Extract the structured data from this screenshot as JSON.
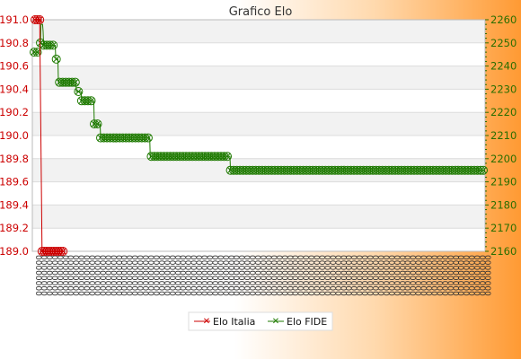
{
  "chart_data": {
    "type": "line",
    "title": "Grafico Elo",
    "y_left": {
      "ticks": [
        189.0,
        189.2,
        189.4,
        189.6,
        189.8,
        190.0,
        190.2,
        190.4,
        190.6,
        190.8,
        191.0
      ],
      "ylim": [
        189.0,
        191.0
      ],
      "color": "#cc0000"
    },
    "y_right": {
      "ticks": [
        2160,
        2170,
        2180,
        2190,
        2200,
        2210,
        2220,
        2230,
        2240,
        2250,
        2260
      ],
      "ylim": [
        2160,
        2260
      ],
      "color": "#2a6e00"
    },
    "grid": true,
    "legend_position": "bottom-center",
    "series": [
      {
        "name": "Elo Italia",
        "color": "#cc0000",
        "axis": "left",
        "values": [
          191.0,
          191.0,
          191.0,
          189.0,
          189.0,
          189.0,
          189.0,
          189.0,
          189.0,
          189.0,
          189.0,
          189.0,
          189.0
        ]
      },
      {
        "name": "Elo FIDE",
        "color": "#1e7a00",
        "axis": "right",
        "values": [
          2246,
          2246,
          2246,
          2246,
          2246,
          2246,
          2246,
          2246,
          2246,
          2246,
          2246,
          2246,
          2250,
          2258,
          2258,
          2258,
          2258,
          2255,
          2249,
          2249,
          2249,
          2249,
          2249,
          2249,
          2249,
          2249,
          2249,
          2249,
          2249,
          2249,
          2249,
          2249,
          2249,
          2249,
          2249,
          2249,
          2249,
          2249,
          2249,
          2249,
          2249,
          2243,
          2243,
          2243,
          2243,
          2243,
          2233,
          2233,
          2233,
          2233,
          2233,
          2233,
          2233,
          2233,
          2233,
          2233,
          2233,
          2233,
          2233,
          2233,
          2233,
          2233,
          2233,
          2233,
          2233,
          2233,
          2233,
          2233,
          2233,
          2233,
          2233,
          2233,
          2233,
          2233,
          2233,
          2233,
          2233,
          2233,
          2233,
          2233,
          2229,
          2229,
          2229,
          2229,
          2229,
          2229,
          2229,
          2229,
          2229,
          2229,
          2225,
          2225,
          2225,
          2225,
          2225,
          2225,
          2225,
          2225,
          2225,
          2225,
          2225,
          2225,
          2225,
          2225,
          2225,
          2225,
          2225,
          2225,
          2225,
          2225,
          2225,
          2225,
          2225,
          2225,
          2215,
          2215,
          2215,
          2215,
          2215,
          2215,
          2215,
          2215,
          2215,
          2215,
          2215,
          2215,
          2209,
          2209,
          2209,
          2209,
          2209,
          2209,
          2209,
          2209,
          2209,
          2209,
          2209,
          2209,
          2209,
          2209,
          2209,
          2209,
          2209,
          2209,
          2209,
          2209,
          2209,
          2209,
          2209,
          2209,
          2209,
          2209,
          2209,
          2209,
          2209,
          2209,
          2209,
          2209,
          2209,
          2209,
          2209,
          2209,
          2209,
          2209,
          2209,
          2209,
          2209,
          2209,
          2209,
          2209,
          2209,
          2209,
          2209,
          2209,
          2209,
          2209,
          2209,
          2209,
          2209,
          2209,
          2209,
          2209,
          2209,
          2209,
          2209,
          2209,
          2209,
          2209,
          2209,
          2209,
          2209,
          2209,
          2209,
          2209,
          2209,
          2209,
          2209,
          2209,
          2209,
          2209,
          2209,
          2209,
          2209,
          2209,
          2209,
          2209,
          2209,
          2209,
          2209,
          2209,
          2209,
          2209,
          2209,
          2209,
          2209,
          2209,
          2209,
          2209,
          2209,
          2209,
          2201,
          2201,
          2201,
          2201,
          2201,
          2201,
          2201,
          2201,
          2201,
          2201,
          2201,
          2201,
          2201,
          2201,
          2201,
          2201,
          2201,
          2201,
          2201,
          2201,
          2201,
          2201,
          2201,
          2201,
          2201,
          2201,
          2201,
          2201,
          2201,
          2201,
          2201,
          2201,
          2201,
          2201,
          2201,
          2201,
          2201,
          2201,
          2201,
          2201,
          2201,
          2201,
          2201,
          2201,
          2201,
          2201,
          2201,
          2201,
          2201,
          2201,
          2201,
          2201,
          2201,
          2201,
          2201,
          2201,
          2201,
          2201,
          2201,
          2201,
          2201,
          2201,
          2201,
          2201,
          2201,
          2201,
          2201,
          2201,
          2201,
          2201,
          2201,
          2201,
          2201,
          2201,
          2201,
          2201,
          2201,
          2201,
          2201,
          2201,
          2201,
          2201,
          2201,
          2201,
          2201,
          2201,
          2201,
          2201,
          2201,
          2201,
          2201,
          2201,
          2201,
          2201,
          2201,
          2201,
          2201,
          2201,
          2201,
          2201,
          2201,
          2201,
          2201,
          2201,
          2201,
          2201,
          2201,
          2201,
          2201,
          2201,
          2201,
          2201,
          2201,
          2201,
          2201,
          2201,
          2201,
          2201,
          2201,
          2201,
          2201,
          2201,
          2201,
          2201,
          2201,
          2201,
          2201,
          2201,
          2201,
          2201,
          2201,
          2201,
          2201,
          2201,
          2201,
          2201,
          2201,
          2201,
          2201,
          2201,
          2201,
          2201,
          2201,
          2201,
          2201,
          2201,
          2201,
          2201,
          2201,
          2201,
          2201,
          2201,
          2195,
          2195,
          2195,
          2195,
          2195,
          2195,
          2195,
          2195,
          2195,
          2195,
          2195,
          2195,
          2195,
          2195,
          2195,
          2195,
          2195,
          2195,
          2195,
          2195,
          2195,
          2195,
          2195,
          2195,
          2195,
          2195,
          2195,
          2195,
          2195,
          2195,
          2195,
          2195,
          2195,
          2195,
          2195,
          2195,
          2195,
          2195,
          2195,
          2195,
          2195,
          2195,
          2195,
          2195,
          2195,
          2195,
          2195,
          2195,
          2195,
          2195,
          2195,
          2195,
          2195,
          2195,
          2195,
          2195,
          2195,
          2195,
          2195,
          2195,
          2195,
          2195,
          2195,
          2195,
          2195,
          2195,
          2195,
          2195,
          2195,
          2195,
          2195,
          2195,
          2195,
          2195,
          2195,
          2195,
          2195,
          2195,
          2195,
          2195,
          2195,
          2195,
          2195,
          2195,
          2195,
          2195,
          2195,
          2195,
          2195,
          2195,
          2195,
          2195,
          2195,
          2195,
          2195,
          2195,
          2195,
          2195,
          2195,
          2195,
          2195,
          2195,
          2195,
          2195,
          2195,
          2195,
          2195,
          2195,
          2195,
          2195,
          2195,
          2195,
          2195,
          2195,
          2195,
          2195,
          2195,
          2195,
          2195,
          2195,
          2195,
          2195,
          2195,
          2195,
          2195,
          2195,
          2195,
          2195,
          2195,
          2195,
          2195,
          2195,
          2195,
          2195,
          2195,
          2195,
          2195,
          2195,
          2195,
          2195,
          2195,
          2195,
          2195,
          2195,
          2195,
          2195,
          2195,
          2195,
          2195,
          2195,
          2195,
          2195,
          2195,
          2195,
          2195,
          2195,
          2195,
          2195,
          2195,
          2195,
          2195,
          2195,
          2195,
          2195,
          2195,
          2195,
          2195,
          2195,
          2195,
          2195,
          2195,
          2195,
          2195,
          2195,
          2195,
          2195,
          2195,
          2195,
          2195,
          2195,
          2195,
          2195,
          2195,
          2195,
          2195,
          2195,
          2195,
          2195,
          2195,
          2195,
          2195,
          2195,
          2195,
          2195,
          2195,
          2195,
          2195,
          2195,
          2195,
          2195,
          2195,
          2195,
          2195,
          2195,
          2195,
          2195,
          2195,
          2195,
          2195,
          2195,
          2195,
          2195,
          2195,
          2195,
          2195,
          2195,
          2195,
          2195,
          2195,
          2195,
          2195,
          2195,
          2195,
          2195,
          2195,
          2195,
          2195,
          2195,
          2195,
          2195,
          2195,
          2195,
          2195,
          2195,
          2195,
          2195,
          2195,
          2195,
          2195,
          2195,
          2195,
          2195,
          2195,
          2195,
          2195,
          2195,
          2195,
          2195,
          2195,
          2195,
          2195,
          2195,
          2195,
          2195,
          2195,
          2195,
          2195,
          2195,
          2195,
          2195,
          2195,
          2195,
          2195,
          2195,
          2195,
          2195,
          2195,
          2195,
          2195,
          2195,
          2195,
          2195,
          2195,
          2195,
          2195,
          2195,
          2195,
          2195,
          2195,
          2195,
          2195,
          2195,
          2195,
          2195,
          2195,
          2195,
          2195,
          2195,
          2195,
          2195,
          2195,
          2195,
          2195,
          2195,
          2195,
          2195,
          2195,
          2195,
          2195,
          2195,
          2195,
          2195,
          2195,
          2195,
          2195,
          2195,
          2195,
          2195,
          2195,
          2195,
          2195,
          2195,
          2195,
          2195,
          2195,
          2195,
          2195,
          2195,
          2195,
          2195,
          2195,
          2195,
          2195,
          2195,
          2195,
          2195,
          2195,
          2195,
          2195,
          2195,
          2195,
          2195,
          2195,
          2195,
          2195,
          2195,
          2195,
          2195,
          2195,
          2195,
          2195,
          2195,
          2195,
          2195,
          2195,
          2195,
          2195,
          2195,
          2195,
          2195,
          2195,
          2195,
          2195,
          2195,
          2195,
          2195,
          2195,
          2195,
          2195,
          2195,
          2195,
          2195,
          2195,
          2195,
          2195,
          2195,
          2195,
          2195,
          2195,
          2195,
          2195,
          2195,
          2195,
          2195,
          2195,
          2195,
          2195,
          2195,
          2195,
          2195,
          2195,
          2195,
          2195,
          2195,
          2195,
          2195,
          2195,
          2195,
          2195,
          2195,
          2195,
          2195,
          2195,
          2195,
          2195,
          2195,
          2195,
          2195,
          2195,
          2195,
          2195,
          2195,
          2195,
          2195,
          2195,
          2195,
          2195,
          2195,
          2195,
          2195,
          2195,
          2195,
          2195,
          2195,
          2195,
          2195,
          2195,
          2195,
          2195,
          2195,
          2195,
          2195,
          2195,
          2195,
          2195,
          2195,
          2195,
          2195,
          2195,
          2195,
          2195,
          2195,
          2195,
          2195,
          2195,
          2195,
          2195,
          2195,
          2195,
          2195,
          2195,
          2195,
          2195,
          2195,
          2195,
          2195,
          2195,
          2195,
          2195,
          2195,
          2195,
          2195,
          2195,
          2195,
          2195,
          2195,
          2195,
          2195,
          2195,
          2195,
          2195,
          2195,
          2195,
          2195,
          2195,
          2195,
          2195,
          2195,
          2195,
          2195,
          2195,
          2195,
          2195,
          2195,
          2195,
          2195,
          2195,
          2195,
          2195,
          2195
        ]
      }
    ]
  }
}
